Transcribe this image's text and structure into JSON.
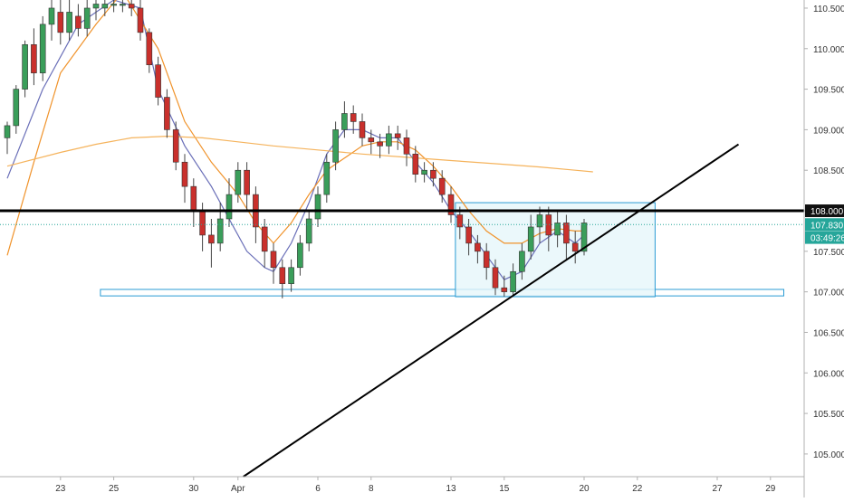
{
  "chart_data": {
    "type": "candlestick",
    "y_axis": {
      "range": [
        104.72,
        110.6
      ],
      "ticks": [
        "110.500",
        "110.000",
        "109.500",
        "109.000",
        "108.500",
        "108.000",
        "107.500",
        "107.000",
        "106.500",
        "106.000",
        "105.500",
        "105.000"
      ],
      "tick_values": [
        110.5,
        110.0,
        109.5,
        109.0,
        108.5,
        108.0,
        107.5,
        107.0,
        106.5,
        106.0,
        105.5,
        105.0
      ]
    },
    "x_axis": {
      "range": [
        0,
        88
      ],
      "labels": [
        {
          "text": "23",
          "x": 6
        },
        {
          "text": "25",
          "x": 12
        },
        {
          "text": "30",
          "x": 21
        },
        {
          "text": "Apr",
          "x": 26
        },
        {
          "text": "6",
          "x": 35
        },
        {
          "text": "8",
          "x": 41
        },
        {
          "text": "13",
          "x": 50
        },
        {
          "text": "15",
          "x": 56
        },
        {
          "text": "20",
          "x": 65
        },
        {
          "text": "22",
          "x": 71
        },
        {
          "text": "27",
          "x": 80
        },
        {
          "text": "29",
          "x": 86
        }
      ]
    },
    "price_labels": [
      {
        "text": "108.000",
        "value": 108.0,
        "style": "dark"
      },
      {
        "text": "107.830",
        "value": 107.83,
        "style": "green"
      },
      {
        "text": "03:49:26",
        "value": 107.67,
        "style": "green"
      }
    ],
    "horizontal_line": {
      "value": 108.0,
      "color": "#000000"
    },
    "current_price_line": {
      "value": 107.83,
      "color": "#26a69a"
    },
    "trend_line": {
      "from": [
        26.6,
        104.72
      ],
      "to": [
        82.4,
        108.82
      ],
      "color": "#000000"
    },
    "support_zone": {
      "x0": 10.5,
      "x1": 87.5,
      "y0": 106.95,
      "y1": 107.03,
      "color": "#2a9bd4"
    },
    "consolidation_box": {
      "x0": 50.5,
      "x1": 73.0,
      "y0": 106.94,
      "y1": 108.1,
      "color": "#2a9bd4",
      "fill": "#e6f6fa"
    },
    "moving_averages": [
      {
        "name": "ma-fast",
        "color": "#6a6fb8",
        "points": [
          [
            0,
            108.4
          ],
          [
            4,
            109.5
          ],
          [
            8,
            110.3
          ],
          [
            12,
            110.6
          ],
          [
            15,
            110.5
          ],
          [
            17,
            109.5
          ],
          [
            20,
            108.8
          ],
          [
            23,
            108.3
          ],
          [
            25,
            107.9
          ],
          [
            27,
            107.5
          ],
          [
            29,
            107.3
          ],
          [
            30,
            107.25
          ],
          [
            32,
            107.6
          ],
          [
            34,
            108.1
          ],
          [
            36,
            108.7
          ],
          [
            38,
            109.0
          ],
          [
            40,
            109.0
          ],
          [
            42,
            108.9
          ],
          [
            44,
            108.9
          ],
          [
            46,
            108.6
          ],
          [
            48,
            108.35
          ],
          [
            50,
            108.0
          ],
          [
            52,
            107.75
          ],
          [
            54,
            107.45
          ],
          [
            56,
            107.15
          ],
          [
            58,
            107.25
          ],
          [
            60,
            107.6
          ],
          [
            62,
            107.75
          ],
          [
            64,
            107.6
          ],
          [
            65,
            107.7
          ]
        ]
      },
      {
        "name": "ma-slow",
        "color": "#f0932b",
        "points": [
          [
            0,
            107.45
          ],
          [
            3,
            108.6
          ],
          [
            6,
            109.7
          ],
          [
            10,
            110.3
          ],
          [
            13,
            110.7
          ],
          [
            17,
            110.0
          ],
          [
            20,
            109.1
          ],
          [
            23,
            108.6
          ],
          [
            26,
            108.2
          ],
          [
            28,
            107.85
          ],
          [
            30,
            107.6
          ],
          [
            32,
            107.85
          ],
          [
            34,
            108.2
          ],
          [
            36,
            108.5
          ],
          [
            38,
            108.65
          ],
          [
            40,
            108.8
          ],
          [
            42,
            108.85
          ],
          [
            44,
            108.85
          ],
          [
            46,
            108.75
          ],
          [
            48,
            108.55
          ],
          [
            50,
            108.3
          ],
          [
            52,
            108.0
          ],
          [
            54,
            107.75
          ],
          [
            56,
            107.6
          ],
          [
            58,
            107.6
          ],
          [
            60,
            107.72
          ],
          [
            62,
            107.78
          ],
          [
            64,
            107.75
          ],
          [
            65,
            107.75
          ]
        ]
      },
      {
        "name": "ma-long",
        "color": "#f5b35c",
        "points": [
          [
            0,
            108.55
          ],
          [
            6,
            108.72
          ],
          [
            10,
            108.82
          ],
          [
            14,
            108.9
          ],
          [
            18,
            108.92
          ],
          [
            22,
            108.9
          ],
          [
            26,
            108.85
          ],
          [
            30,
            108.8
          ],
          [
            35,
            108.75
          ],
          [
            40,
            108.7
          ],
          [
            45,
            108.66
          ],
          [
            50,
            108.62
          ],
          [
            55,
            108.58
          ],
          [
            60,
            108.54
          ],
          [
            64,
            108.5
          ],
          [
            66,
            108.48
          ]
        ]
      }
    ],
    "candles": [
      [
        0,
        108.9,
        109.05,
        108.7,
        109.1
      ],
      [
        1,
        109.05,
        109.5,
        108.95,
        109.55
      ],
      [
        2,
        109.5,
        110.05,
        109.4,
        110.1
      ],
      [
        3,
        110.05,
        109.7,
        109.55,
        110.25
      ],
      [
        4,
        109.7,
        110.3,
        109.6,
        110.4
      ],
      [
        5,
        110.3,
        110.5,
        110.1,
        110.6
      ],
      [
        6,
        110.45,
        110.2,
        110.05,
        110.6
      ],
      [
        7,
        110.2,
        110.45,
        110.1,
        110.6
      ],
      [
        8,
        110.4,
        110.25,
        110.15,
        110.55
      ],
      [
        9,
        110.25,
        110.5,
        110.15,
        110.6
      ],
      [
        10,
        110.5,
        110.55,
        110.35,
        110.6
      ],
      [
        11,
        110.5,
        110.55,
        110.4,
        110.6
      ],
      [
        12,
        110.55,
        110.55,
        110.45,
        110.6
      ],
      [
        13,
        110.55,
        110.55,
        110.45,
        110.6
      ],
      [
        14,
        110.55,
        110.5,
        110.4,
        110.6
      ],
      [
        15,
        110.5,
        110.2,
        110.1,
        110.6
      ],
      [
        16,
        110.2,
        109.8,
        109.7,
        110.25
      ],
      [
        17,
        109.8,
        109.4,
        109.3,
        109.9
      ],
      [
        18,
        109.4,
        109.0,
        108.9,
        109.5
      ],
      [
        19,
        109.0,
        108.6,
        108.5,
        109.1
      ],
      [
        20,
        108.6,
        108.3,
        108.1,
        108.7
      ],
      [
        21,
        108.3,
        108.0,
        107.8,
        108.4
      ],
      [
        22,
        108.0,
        107.7,
        107.5,
        108.1
      ],
      [
        23,
        107.7,
        107.6,
        107.3,
        107.9
      ],
      [
        24,
        107.6,
        107.9,
        107.5,
        108.1
      ],
      [
        25,
        107.9,
        108.2,
        107.8,
        108.4
      ],
      [
        26,
        108.2,
        108.5,
        108.1,
        108.6
      ],
      [
        27,
        108.5,
        108.2,
        108.0,
        108.6
      ],
      [
        28,
        108.2,
        107.8,
        107.6,
        108.3
      ],
      [
        29,
        107.8,
        107.5,
        107.3,
        107.9
      ],
      [
        30,
        107.5,
        107.3,
        107.1,
        107.6
      ],
      [
        31,
        107.3,
        107.1,
        106.92,
        107.4
      ],
      [
        32,
        107.1,
        107.3,
        107.0,
        107.4
      ],
      [
        33,
        107.3,
        107.6,
        107.2,
        107.7
      ],
      [
        34,
        107.6,
        107.9,
        107.5,
        108.0
      ],
      [
        35,
        107.9,
        108.2,
        107.8,
        108.3
      ],
      [
        36,
        108.2,
        108.6,
        108.1,
        108.7
      ],
      [
        37,
        108.6,
        109.0,
        108.5,
        109.1
      ],
      [
        38,
        109.0,
        109.2,
        108.9,
        109.35
      ],
      [
        39,
        109.2,
        109.1,
        108.95,
        109.3
      ],
      [
        40,
        109.1,
        108.9,
        108.8,
        109.2
      ],
      [
        41,
        108.9,
        108.85,
        108.7,
        109.0
      ],
      [
        42,
        108.85,
        108.8,
        108.65,
        108.95
      ],
      [
        43,
        108.8,
        108.95,
        108.7,
        109.05
      ],
      [
        44,
        108.95,
        108.9,
        108.75,
        109.05
      ],
      [
        45,
        108.9,
        108.7,
        108.55,
        109.0
      ],
      [
        46,
        108.7,
        108.45,
        108.35,
        108.8
      ],
      [
        47,
        108.45,
        108.5,
        108.35,
        108.6
      ],
      [
        48,
        108.5,
        108.4,
        108.3,
        108.6
      ],
      [
        49,
        108.4,
        108.2,
        108.1,
        108.5
      ],
      [
        50,
        108.2,
        107.95,
        107.85,
        108.3
      ],
      [
        51,
        107.95,
        107.8,
        107.65,
        108.05
      ],
      [
        52,
        107.8,
        107.6,
        107.45,
        107.9
      ],
      [
        53,
        107.6,
        107.5,
        107.35,
        107.7
      ],
      [
        54,
        107.5,
        107.3,
        107.15,
        107.6
      ],
      [
        55,
        107.3,
        107.05,
        106.96,
        107.4
      ],
      [
        56,
        107.05,
        107.0,
        106.94,
        107.2
      ],
      [
        57,
        107.0,
        107.25,
        106.96,
        107.35
      ],
      [
        58,
        107.25,
        107.5,
        107.15,
        107.6
      ],
      [
        59,
        107.5,
        107.8,
        107.4,
        107.95
      ],
      [
        60,
        107.8,
        107.95,
        107.6,
        108.05
      ],
      [
        61,
        107.95,
        107.7,
        107.5,
        108.05
      ],
      [
        62,
        107.7,
        107.85,
        107.55,
        108.0
      ],
      [
        63,
        107.85,
        107.6,
        107.4,
        107.95
      ],
      [
        64,
        107.6,
        107.5,
        107.35,
        107.75
      ],
      [
        65,
        107.5,
        107.85,
        107.45,
        107.9
      ]
    ]
  }
}
